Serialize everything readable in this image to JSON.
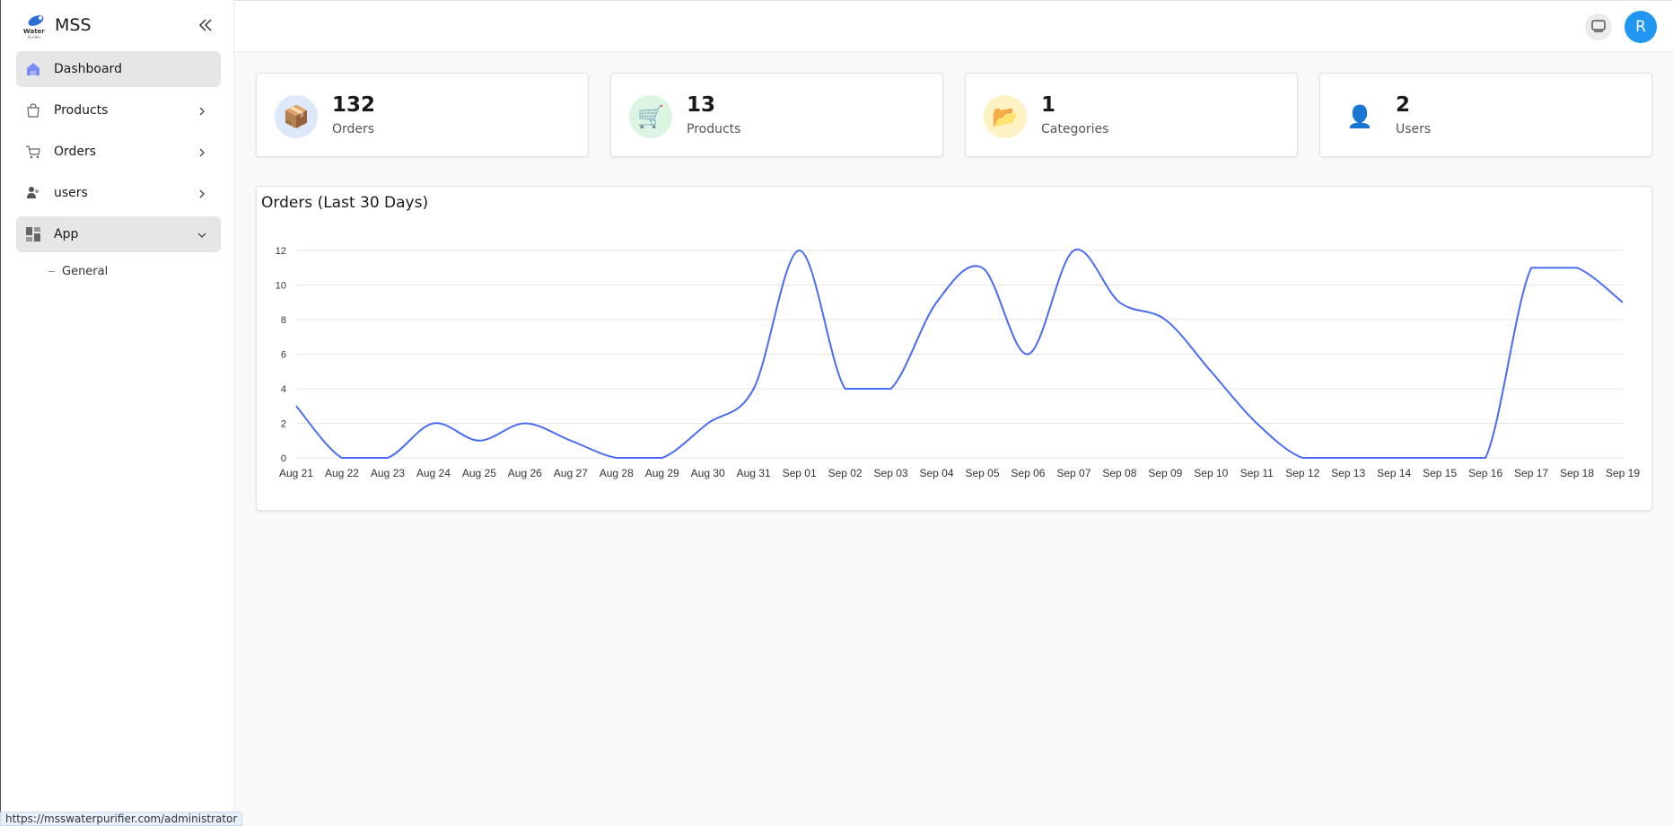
{
  "sidebar": {
    "brand": "MSS",
    "logo_text": "Water Purifier",
    "items": [
      {
        "label": "Dashboard",
        "icon": "home-icon"
      },
      {
        "label": "Products",
        "icon": "shopping-bag-icon"
      },
      {
        "label": "Orders",
        "icon": "cart-icon"
      },
      {
        "label": "users",
        "icon": "users-icon"
      },
      {
        "label": "App",
        "icon": "grid-icon"
      }
    ],
    "sub_items": [
      {
        "label": "General"
      }
    ]
  },
  "header": {
    "avatar_letter": "R"
  },
  "stats": [
    {
      "value": "132",
      "label": "Orders",
      "icon": "📦",
      "color": "#dde9fb"
    },
    {
      "value": "13",
      "label": "Products",
      "icon": "🛒",
      "color": "#dcf5e3"
    },
    {
      "value": "1",
      "label": "Categories",
      "icon": "📂",
      "color": "#fdf2c4"
    },
    {
      "value": "2",
      "label": "Users",
      "icon": "👤",
      "color": "#ffffff"
    }
  ],
  "chart_data": {
    "type": "line",
    "title": "Orders (Last 30 Days)",
    "categories": [
      "Aug 21",
      "Aug 22",
      "Aug 23",
      "Aug 24",
      "Aug 25",
      "Aug 26",
      "Aug 27",
      "Aug 28",
      "Aug 29",
      "Aug 30",
      "Aug 31",
      "Sep 01",
      "Sep 02",
      "Sep 03",
      "Sep 04",
      "Sep 05",
      "Sep 06",
      "Sep 07",
      "Sep 08",
      "Sep 09",
      "Sep 10",
      "Sep 11",
      "Sep 12",
      "Sep 13",
      "Sep 14",
      "Sep 15",
      "Sep 16",
      "Sep 17",
      "Sep 18",
      "Sep 19"
    ],
    "values": [
      3,
      0,
      0,
      2,
      1,
      2,
      1,
      0,
      0,
      2,
      4,
      12,
      4,
      4,
      9,
      11,
      6,
      12,
      9,
      8,
      5,
      2,
      0,
      0,
      0,
      0,
      0,
      11,
      11,
      9
    ],
    "ylim": [
      0,
      12
    ],
    "yticks": [
      0,
      2,
      4,
      6,
      8,
      10,
      12
    ],
    "grid": true,
    "color": "#4a6cf0"
  },
  "status_bar": "https://msswaterpurifier.com/administrator"
}
